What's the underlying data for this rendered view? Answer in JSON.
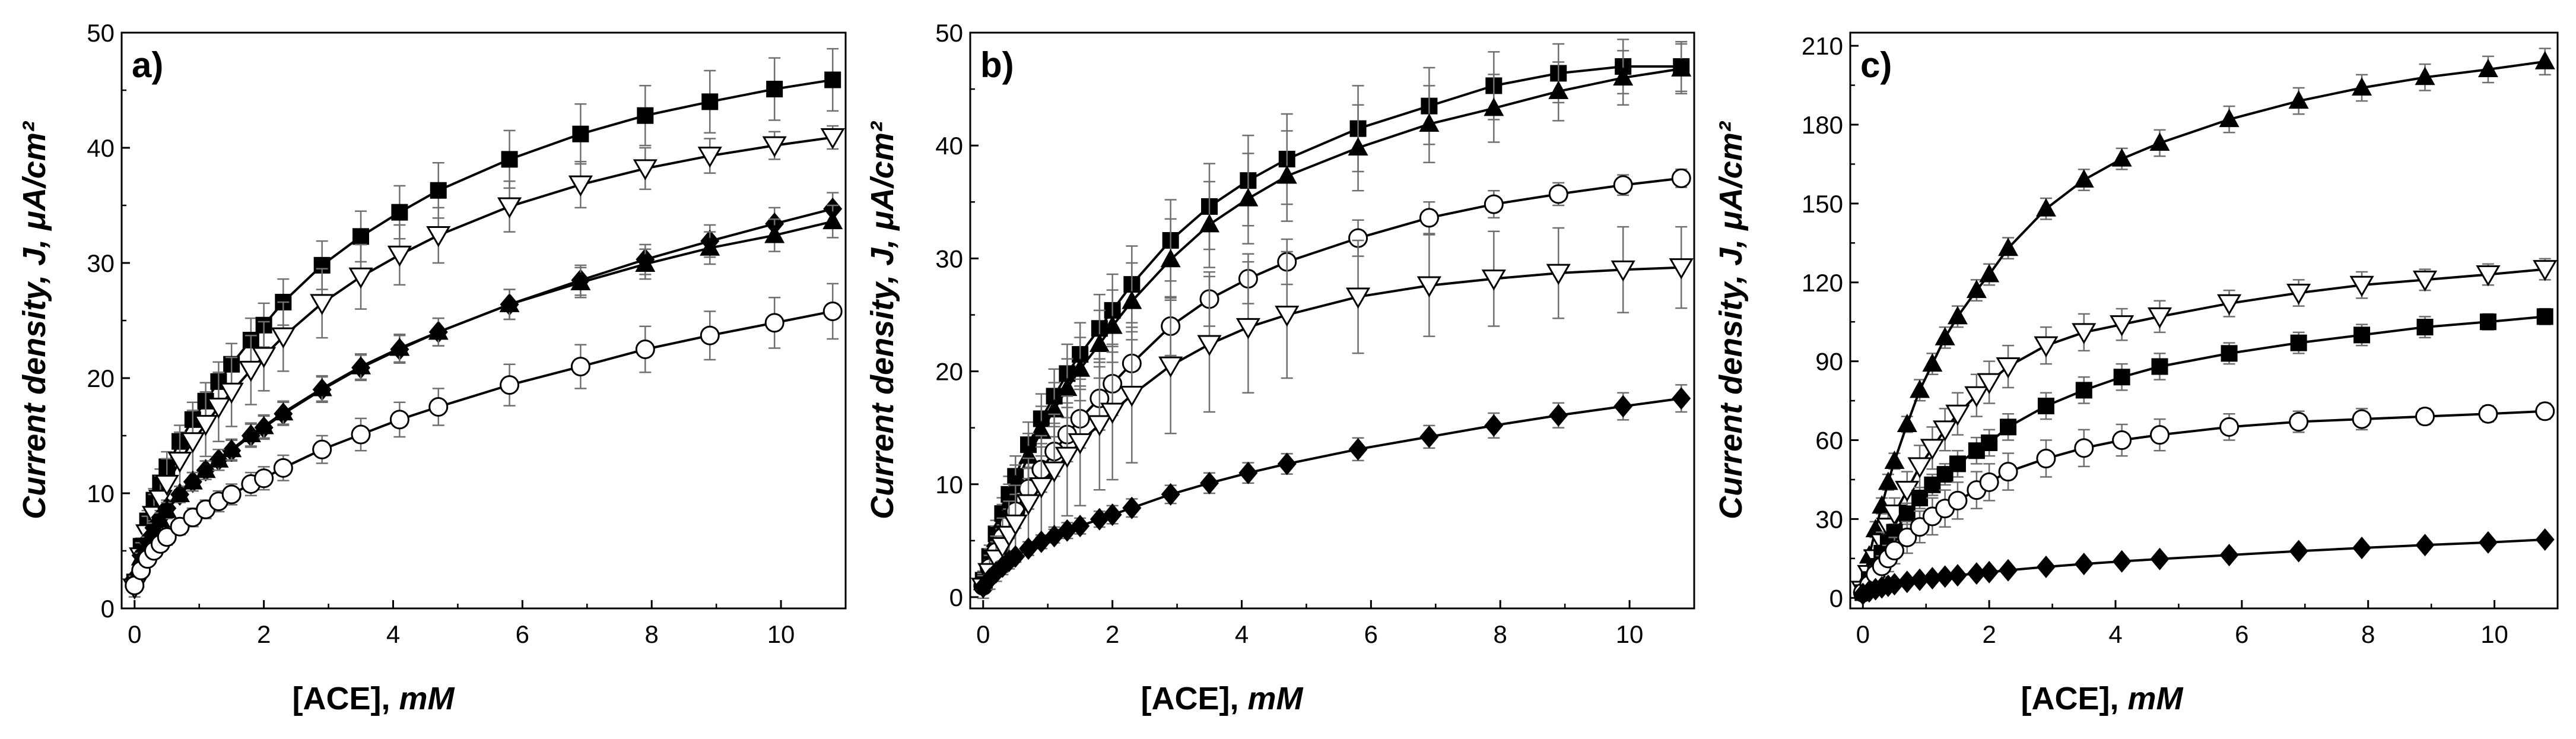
{
  "figure": {
    "colors": {
      "ink": "#000000",
      "errorbar": "#6f6f6f",
      "background": "#ffffff"
    }
  },
  "chart_data": [
    {
      "type": "line",
      "panel_label": "a)",
      "xlabel_main": "[ACE], ",
      "xlabel_unit": "mM",
      "ylabel": "Current density, J, μA/cm²",
      "xlim": [
        -0.2,
        11
      ],
      "ylim": [
        0,
        50
      ],
      "xticks": [
        0,
        2,
        4,
        6,
        8,
        10
      ],
      "yticks": [
        0,
        10,
        20,
        30,
        40,
        50
      ],
      "x": [
        0,
        0.1,
        0.2,
        0.3,
        0.4,
        0.5,
        0.7,
        0.9,
        1.1,
        1.3,
        1.5,
        1.8,
        2.0,
        2.3,
        2.9,
        3.5,
        4.1,
        4.7,
        5.8,
        6.9,
        7.9,
        8.9,
        9.9,
        10.8
      ],
      "series": [
        {
          "name": "filled squares",
          "marker": "square-filled",
          "values": [
            2.3,
            5.4,
            7.6,
            9.4,
            10.9,
            12.3,
            14.5,
            16.4,
            18.0,
            19.7,
            21.2,
            23.3,
            24.6,
            26.6,
            29.8,
            32.3,
            34.4,
            36.3,
            39.0,
            41.2,
            42.8,
            44.0,
            45.1,
            45.9
          ],
          "errors": [
            0.5,
            0.7,
            0.9,
            1.0,
            1.2,
            1.3,
            1.4,
            1.5,
            1.6,
            1.7,
            1.8,
            1.9,
            1.9,
            2.0,
            2.1,
            2.2,
            2.3,
            2.4,
            2.5,
            2.6,
            2.6,
            2.7,
            2.7,
            2.7
          ]
        },
        {
          "name": "open triangles down",
          "marker": "triangle-down-open",
          "values": [
            1.8,
            4.5,
            6.5,
            8.1,
            9.5,
            10.8,
            12.8,
            14.5,
            16.0,
            17.5,
            18.8,
            20.7,
            21.9,
            23.6,
            26.5,
            28.8,
            30.7,
            32.4,
            34.9,
            36.8,
            38.2,
            39.3,
            40.2,
            40.9
          ],
          "errors": [
            0.8,
            1.2,
            1.5,
            1.8,
            2.0,
            2.2,
            2.5,
            2.7,
            2.8,
            3.0,
            3.0,
            3.0,
            3.0,
            3.0,
            3.0,
            2.8,
            2.6,
            2.4,
            2.2,
            2.0,
            1.8,
            1.5,
            1.2,
            1.0
          ]
        },
        {
          "name": "filled diamonds",
          "marker": "diamond-filled",
          "values": [
            2.6,
            4.6,
            5.9,
            7.0,
            7.9,
            8.7,
            9.9,
            11.0,
            12.0,
            12.9,
            13.7,
            15.0,
            15.7,
            16.9,
            19.0,
            20.9,
            22.5,
            24.0,
            26.4,
            28.5,
            30.3,
            31.9,
            33.4,
            34.7
          ],
          "errors": [
            0.3,
            0.4,
            0.5,
            0.6,
            0.6,
            0.7,
            0.7,
            0.8,
            0.8,
            0.9,
            0.9,
            1.0,
            1.0,
            1.0,
            1.1,
            1.1,
            1.2,
            1.2,
            1.3,
            1.3,
            1.3,
            1.4,
            1.4,
            1.4
          ]
        },
        {
          "name": "filled triangles up",
          "marker": "triangle-up-filled",
          "values": [
            2.5,
            4.4,
            5.7,
            6.8,
            7.7,
            8.5,
            9.9,
            11.0,
            12.0,
            12.9,
            13.8,
            15.1,
            15.8,
            17.0,
            19.1,
            21.0,
            22.6,
            24.0,
            26.4,
            28.3,
            29.9,
            31.3,
            32.4,
            33.6
          ],
          "errors": [
            0.3,
            0.4,
            0.5,
            0.6,
            0.6,
            0.7,
            0.7,
            0.8,
            0.8,
            0.9,
            0.9,
            1.0,
            1.0,
            1.0,
            1.1,
            1.1,
            1.2,
            1.2,
            1.3,
            1.3,
            1.3,
            1.4,
            1.4,
            1.4
          ]
        },
        {
          "name": "open circles",
          "marker": "circle-open",
          "values": [
            2.0,
            3.3,
            4.3,
            5.0,
            5.6,
            6.2,
            7.1,
            7.9,
            8.6,
            9.3,
            9.9,
            10.8,
            11.3,
            12.2,
            13.8,
            15.1,
            16.4,
            17.5,
            19.4,
            21.0,
            22.5,
            23.7,
            24.8,
            25.8
          ],
          "errors": [
            0.3,
            0.4,
            0.5,
            0.6,
            0.6,
            0.7,
            0.7,
            0.8,
            0.8,
            0.9,
            0.9,
            1.0,
            1.0,
            1.1,
            1.2,
            1.4,
            1.5,
            1.6,
            1.8,
            1.9,
            2.0,
            2.1,
            2.2,
            2.4
          ]
        }
      ]
    },
    {
      "type": "line",
      "panel_label": "b)",
      "xlabel_main": "[ACE], ",
      "xlabel_unit": "mM",
      "ylabel": "Current density, J, μA/cm²",
      "xlim": [
        -0.2,
        11
      ],
      "ylim": [
        -1,
        50
      ],
      "xticks": [
        0,
        2,
        4,
        6,
        8,
        10
      ],
      "yticks": [
        0,
        10,
        20,
        30,
        40,
        50
      ],
      "x": [
        0,
        0.1,
        0.2,
        0.3,
        0.4,
        0.5,
        0.7,
        0.9,
        1.1,
        1.3,
        1.5,
        1.8,
        2.0,
        2.3,
        2.9,
        3.5,
        4.1,
        4.7,
        5.8,
        6.9,
        7.9,
        8.9,
        9.9,
        10.8
      ],
      "series": [
        {
          "name": "filled squares",
          "marker": "square-filled",
          "values": [
            1.5,
            3.6,
            5.6,
            7.4,
            9.1,
            10.7,
            13.5,
            15.8,
            17.8,
            19.8,
            21.5,
            23.8,
            25.4,
            27.7,
            31.6,
            34.6,
            36.9,
            38.8,
            41.5,
            43.5,
            45.3,
            46.4,
            47.0,
            47.0
          ],
          "errors": [
            0.8,
            1.0,
            1.2,
            1.4,
            1.6,
            1.8,
            2.0,
            2.2,
            2.4,
            2.6,
            2.8,
            3.0,
            3.2,
            3.4,
            3.6,
            3.8,
            4.0,
            4.0,
            3.8,
            3.4,
            3.0,
            2.6,
            2.4,
            2.2
          ]
        },
        {
          "name": "filled triangles up",
          "marker": "triangle-up-filled",
          "values": [
            1.3,
            3.3,
            5.1,
            6.8,
            8.4,
            9.9,
            12.5,
            14.7,
            16.6,
            18.5,
            20.2,
            22.4,
            24.0,
            26.2,
            29.9,
            33.0,
            35.3,
            37.3,
            39.8,
            41.9,
            43.3,
            44.8,
            46.0,
            46.8
          ],
          "errors": [
            0.8,
            1.0,
            1.2,
            1.4,
            1.6,
            1.8,
            2.0,
            2.2,
            2.4,
            2.6,
            2.8,
            3.0,
            3.2,
            3.4,
            3.6,
            3.8,
            4.0,
            4.0,
            3.8,
            3.4,
            3.0,
            2.6,
            2.4,
            2.2
          ]
        },
        {
          "name": "open circles",
          "marker": "circle-open",
          "values": [
            1.0,
            2.6,
            4.0,
            5.3,
            6.5,
            7.6,
            9.6,
            11.3,
            12.9,
            14.4,
            15.8,
            17.6,
            18.9,
            20.7,
            24.0,
            26.4,
            28.2,
            29.7,
            31.8,
            33.6,
            34.8,
            35.7,
            36.5,
            37.1
          ],
          "errors": [
            0.5,
            0.7,
            0.9,
            1.1,
            1.3,
            1.5,
            1.8,
            2.0,
            2.2,
            2.4,
            2.6,
            2.8,
            2.8,
            2.8,
            2.6,
            2.4,
            2.2,
            2.0,
            1.6,
            1.4,
            1.2,
            1.0,
            0.9,
            0.8
          ]
        },
        {
          "name": "open triangles down",
          "marker": "triangle-down-open",
          "values": [
            0.9,
            2.2,
            3.4,
            4.5,
            5.5,
            6.5,
            8.3,
            9.8,
            11.2,
            12.5,
            13.7,
            15.3,
            16.4,
            17.9,
            20.5,
            22.4,
            23.9,
            25.0,
            26.6,
            27.6,
            28.2,
            28.7,
            29.0,
            29.2
          ],
          "errors": [
            1.0,
            1.5,
            2.0,
            2.5,
            3.0,
            3.4,
            4.0,
            4.5,
            5.0,
            5.3,
            5.6,
            5.8,
            6.0,
            6.0,
            6.0,
            6.0,
            5.8,
            5.6,
            5.0,
            4.5,
            4.2,
            4.0,
            3.8,
            3.6
          ]
        },
        {
          "name": "filled diamonds",
          "marker": "diamond-filled",
          "values": [
            0.9,
            1.6,
            2.2,
            2.7,
            3.2,
            3.6,
            4.3,
            4.9,
            5.4,
            5.9,
            6.3,
            6.9,
            7.3,
            7.9,
            9.1,
            10.1,
            11.0,
            11.8,
            13.1,
            14.2,
            15.2,
            16.1,
            16.9,
            17.6
          ],
          "errors": [
            0.3,
            0.4,
            0.4,
            0.5,
            0.5,
            0.5,
            0.6,
            0.6,
            0.6,
            0.7,
            0.7,
            0.7,
            0.8,
            0.8,
            0.8,
            0.9,
            0.9,
            0.9,
            1.0,
            1.0,
            1.1,
            1.1,
            1.2,
            1.2
          ]
        }
      ]
    },
    {
      "type": "line",
      "panel_label": "c)",
      "xlabel_main": "[ACE], ",
      "xlabel_unit": "mM",
      "ylabel": "Current density, J, μA/cm²",
      "xlim": [
        -0.2,
        11
      ],
      "ylim": [
        -4,
        215
      ],
      "xticks": [
        0,
        2,
        4,
        6,
        8,
        10
      ],
      "yticks": [
        0,
        30,
        60,
        90,
        120,
        150,
        180,
        210
      ],
      "x": [
        0,
        0.1,
        0.2,
        0.3,
        0.4,
        0.5,
        0.7,
        0.9,
        1.1,
        1.3,
        1.5,
        1.8,
        2.0,
        2.3,
        2.9,
        3.5,
        4.1,
        4.7,
        5.8,
        6.9,
        7.9,
        8.9,
        9.9,
        10.8
      ],
      "series": [
        {
          "name": "filled triangles up",
          "marker": "triangle-up-filled",
          "values": [
            5,
            16,
            26,
            35,
            44,
            52,
            66,
            79,
            89,
            99,
            107,
            117,
            123,
            133,
            148,
            159,
            167,
            173,
            182,
            189,
            194,
            198,
            201,
            204
          ],
          "errors": [
            1,
            2,
            3,
            3,
            3,
            3,
            3,
            4,
            4,
            4,
            4,
            4,
            4,
            4,
            4,
            4,
            4,
            5,
            5,
            5,
            5,
            5,
            5,
            5
          ]
        },
        {
          "name": "open triangles down",
          "marker": "triangle-down-open",
          "values": [
            3,
            9,
            15,
            21,
            27,
            32,
            41,
            50,
            57,
            64,
            70,
            77,
            82,
            88,
            96,
            101,
            104,
            107,
            112,
            116,
            119,
            121,
            123,
            125
          ],
          "errors": [
            1,
            2,
            3,
            4,
            5,
            6,
            7,
            8,
            8,
            8,
            8,
            8,
            8,
            8,
            7,
            7,
            6,
            6,
            5,
            5,
            5,
            4,
            4,
            4
          ]
        },
        {
          "name": "filled squares",
          "marker": "square-filled",
          "values": [
            2,
            7,
            12,
            17,
            21,
            25,
            32,
            38,
            43,
            47,
            51,
            56,
            59,
            65,
            73,
            79,
            84,
            88,
            93,
            97,
            100,
            103,
            105,
            107
          ],
          "errors": [
            1,
            2,
            2,
            3,
            3,
            3,
            4,
            4,
            4,
            4,
            5,
            5,
            5,
            5,
            5,
            5,
            5,
            5,
            4,
            4,
            4,
            4,
            3,
            3
          ]
        },
        {
          "name": "open circles",
          "marker": "circle-open",
          "values": [
            2,
            5,
            9,
            12,
            15,
            18,
            23,
            27,
            31,
            34,
            37,
            41,
            44,
            48,
            53,
            57,
            60,
            62,
            65,
            67,
            68,
            69,
            70,
            71
          ],
          "errors": [
            1,
            2,
            3,
            4,
            5,
            5,
            6,
            6,
            7,
            7,
            7,
            7,
            7,
            7,
            7,
            7,
            6,
            6,
            5,
            4,
            4,
            3,
            3,
            3
          ]
        },
        {
          "name": "filled diamonds",
          "marker": "diamond-filled",
          "values": [
            1.5,
            2.5,
            3.3,
            4.0,
            4.6,
            5.2,
            6.1,
            6.9,
            7.5,
            8.1,
            8.6,
            9.3,
            9.8,
            10.5,
            11.8,
            12.9,
            13.9,
            14.8,
            16.3,
            17.8,
            19.0,
            20.1,
            21.1,
            22.2
          ],
          "errors": [
            0.3,
            0.4,
            0.4,
            0.5,
            0.5,
            0.5,
            0.6,
            0.6,
            0.6,
            0.7,
            0.7,
            0.8,
            0.8,
            0.8,
            0.9,
            0.9,
            1.0,
            1.0,
            1.1,
            1.1,
            1.2,
            1.2,
            1.3,
            1.3
          ]
        }
      ]
    }
  ]
}
